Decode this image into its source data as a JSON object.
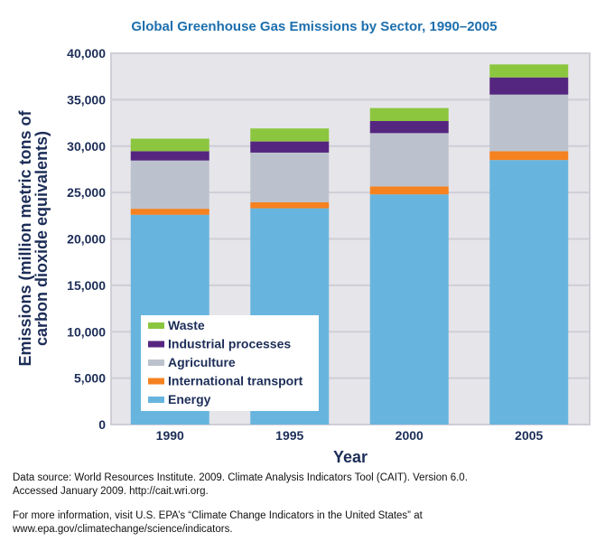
{
  "chart_data": {
    "type": "bar",
    "stacked": true,
    "title": "Global Greenhouse Gas Emissions by Sector, 1990–2005",
    "xlabel": "Year",
    "ylabel_lines": [
      "Emissions (million metric tons of",
      "carbon dioxide equivalents)"
    ],
    "ylabel": "Emissions (million metric tons of carbon dioxide equivalents)",
    "categories": [
      "1990",
      "1995",
      "2000",
      "2005"
    ],
    "ylim": [
      0,
      40000
    ],
    "yticks": [
      0,
      5000,
      10000,
      15000,
      20000,
      25000,
      30000,
      35000,
      40000
    ],
    "ytick_labels": [
      "0",
      "5,000",
      "10,000",
      "15,000",
      "20,000",
      "25,000",
      "30,000",
      "35,000",
      "40,000"
    ],
    "grid": true,
    "legend_position": "lower-left (inside plot)",
    "series": [
      {
        "name": "Energy",
        "color": "#67b5de",
        "values": [
          22600,
          23300,
          24800,
          28500
        ]
      },
      {
        "name": "International transport",
        "color": "#f58220",
        "values": [
          650,
          650,
          850,
          950
        ]
      },
      {
        "name": "Agriculture",
        "color": "#bcc2cd",
        "values": [
          5200,
          5350,
          5750,
          6100
        ]
      },
      {
        "name": "Industrial processes",
        "color": "#55267f",
        "values": [
          1000,
          1200,
          1300,
          1850
        ]
      },
      {
        "name": "Waste",
        "color": "#8cc63f",
        "values": [
          1350,
          1400,
          1400,
          1400
        ]
      }
    ],
    "legend_order": [
      "Waste",
      "Industrial processes",
      "Agriculture",
      "International transport",
      "Energy"
    ]
  },
  "colors": {
    "title": "#1d6fad",
    "axis_text": "#1c2d57",
    "plot_background": "#e6e5ea",
    "gridline": "#cfced6"
  },
  "footnotes": {
    "source_line1": "Data source: World Resources Institute. 2009. Climate Analysis Indicators Tool (CAIT). Version 6.0.",
    "source_line2": "Accessed January 2009. http://cait.wri.org.",
    "info_line1": "For more information, visit U.S. EPA’s “Climate Change Indicators in the United States” at",
    "info_line2": "www.epa.gov/climatechange/science/indicators."
  }
}
